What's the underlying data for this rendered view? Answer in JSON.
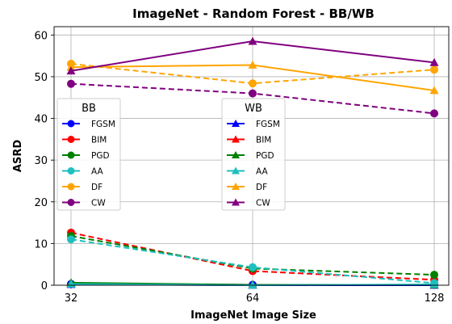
{
  "chart_data": {
    "type": "line",
    "title": "ImageNet - Random Forest - BB/WB",
    "xlabel": "ImageNet Image Size",
    "ylabel": "ASRD",
    "x": [
      32,
      64,
      128
    ],
    "x_tick_labels": [
      "32",
      "64",
      "128"
    ],
    "y_ticks": [
      0,
      10,
      20,
      30,
      40,
      50,
      60
    ],
    "ylim": [
      0,
      62
    ],
    "grid": true,
    "legends": [
      {
        "title": "BB",
        "placement": "center-left",
        "marker": "circle",
        "entries": [
          "FGSM",
          "BIM",
          "PGD",
          "AA",
          "DF",
          "CW"
        ]
      },
      {
        "title": "WB",
        "placement": "center",
        "marker": "triangle",
        "entries": [
          "FGSM",
          "BIM",
          "PGD",
          "AA",
          "DF",
          "CW"
        ]
      }
    ],
    "colors": {
      "FGSM": "#0000ff",
      "BIM": "#ff0000",
      "PGD": "#008000",
      "AA": "#1fbfbf",
      "DF": "#ffa500",
      "CW": "#800080"
    },
    "series": [
      {
        "group": "BB",
        "name": "FGSM",
        "style": "dashed",
        "marker": "circle",
        "values": [
          0.3,
          0.1,
          0.1
        ]
      },
      {
        "group": "BB",
        "name": "BIM",
        "style": "dashed",
        "marker": "circle",
        "values": [
          12.6,
          3.4,
          1.3
        ]
      },
      {
        "group": "BB",
        "name": "PGD",
        "style": "dashed",
        "marker": "circle",
        "values": [
          11.8,
          4.0,
          2.5
        ]
      },
      {
        "group": "BB",
        "name": "AA",
        "style": "dashed",
        "marker": "circle",
        "values": [
          11.0,
          4.3,
          0.5
        ]
      },
      {
        "group": "BB",
        "name": "DF",
        "style": "dashed",
        "marker": "circle",
        "values": [
          53.1,
          48.4,
          51.7
        ]
      },
      {
        "group": "BB",
        "name": "CW",
        "style": "dashed",
        "marker": "circle",
        "values": [
          48.3,
          46.0,
          41.2
        ]
      },
      {
        "group": "WB",
        "name": "FGSM",
        "style": "solid",
        "marker": "triangle",
        "values": [
          0.2,
          0.0,
          0.0
        ]
      },
      {
        "group": "WB",
        "name": "BIM",
        "style": "solid",
        "marker": "triangle",
        "values": [
          0.4,
          0.1,
          0.1
        ]
      },
      {
        "group": "WB",
        "name": "PGD",
        "style": "solid",
        "marker": "triangle",
        "values": [
          0.6,
          0.1,
          0.1
        ]
      },
      {
        "group": "WB",
        "name": "AA",
        "style": "solid",
        "marker": "triangle",
        "values": [
          0.3,
          0.0,
          0.2
        ]
      },
      {
        "group": "WB",
        "name": "DF",
        "style": "solid",
        "marker": "triangle",
        "values": [
          52.3,
          52.8,
          46.7
        ]
      },
      {
        "group": "WB",
        "name": "CW",
        "style": "solid",
        "marker": "triangle",
        "values": [
          51.4,
          58.5,
          53.4
        ]
      }
    ]
  }
}
